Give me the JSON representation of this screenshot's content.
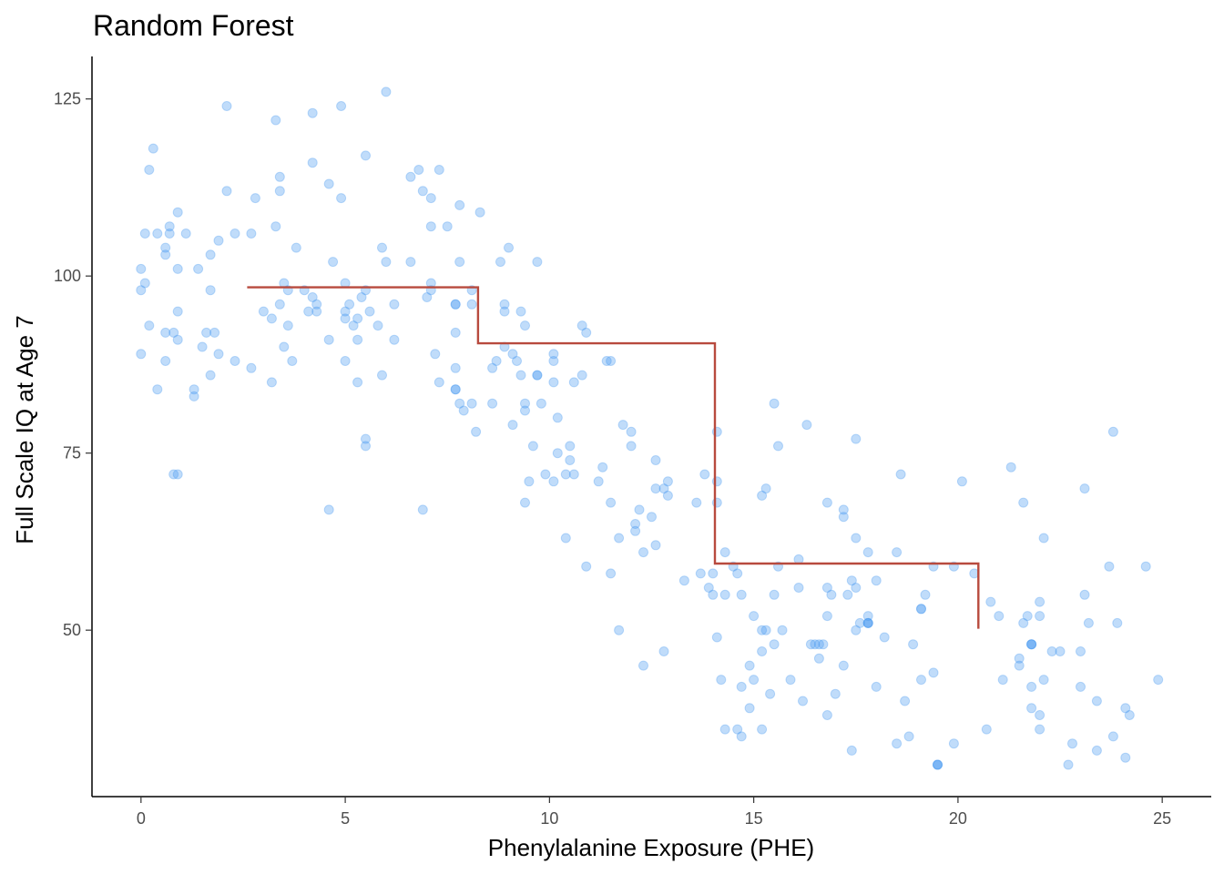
{
  "chart_data": {
    "type": "scatter",
    "title": "Random Forest",
    "xlabel": "Phenylalanine Exposure (PHE)",
    "ylabel": "Full Scale IQ at Age 7",
    "xlim": [
      -1.2,
      26.2
    ],
    "ylim": [
      26.5,
      131
    ],
    "xticks": [
      0,
      5,
      10,
      15,
      20,
      25
    ],
    "yticks": [
      50,
      75,
      100,
      125
    ],
    "grid": false,
    "legend": "none",
    "colors": {
      "points": "#4a9cf2",
      "step_line": "#b84a3e",
      "axis": "#000000"
    },
    "series": [
      {
        "type": "scatter",
        "points": [
          [
            0.0,
            101
          ],
          [
            0.0,
            98
          ],
          [
            0.0,
            89
          ],
          [
            0.1,
            106
          ],
          [
            0.1,
            99
          ],
          [
            0.2,
            115
          ],
          [
            0.2,
            93
          ],
          [
            0.3,
            118
          ],
          [
            0.4,
            106
          ],
          [
            0.4,
            84
          ],
          [
            0.6,
            104
          ],
          [
            0.6,
            103
          ],
          [
            0.6,
            92
          ],
          [
            0.6,
            88
          ],
          [
            0.7,
            107
          ],
          [
            0.7,
            106
          ],
          [
            0.8,
            92
          ],
          [
            0.8,
            72
          ],
          [
            0.9,
            109
          ],
          [
            0.9,
            101
          ],
          [
            0.9,
            95
          ],
          [
            0.9,
            91
          ],
          [
            0.9,
            72
          ],
          [
            1.1,
            106
          ],
          [
            1.3,
            84
          ],
          [
            1.3,
            83
          ],
          [
            1.4,
            101
          ],
          [
            1.5,
            90
          ],
          [
            1.6,
            92
          ],
          [
            1.7,
            103
          ],
          [
            1.7,
            98
          ],
          [
            1.7,
            86
          ],
          [
            1.8,
            92
          ],
          [
            1.9,
            105
          ],
          [
            1.9,
            89
          ],
          [
            2.1,
            124
          ],
          [
            2.1,
            112
          ],
          [
            2.3,
            106
          ],
          [
            2.3,
            88
          ],
          [
            2.7,
            106
          ],
          [
            2.7,
            87
          ],
          [
            2.8,
            111
          ],
          [
            3.0,
            95
          ],
          [
            3.2,
            94
          ],
          [
            3.2,
            85
          ],
          [
            3.3,
            122
          ],
          [
            3.3,
            107
          ],
          [
            3.4,
            114
          ],
          [
            3.4,
            112
          ],
          [
            3.4,
            96
          ],
          [
            3.5,
            99
          ],
          [
            3.5,
            90
          ],
          [
            3.6,
            98
          ],
          [
            3.6,
            93
          ],
          [
            3.7,
            88
          ],
          [
            3.8,
            104
          ],
          [
            4.0,
            98
          ],
          [
            4.2,
            123
          ],
          [
            4.2,
            116
          ],
          [
            4.2,
            97
          ],
          [
            4.3,
            96
          ],
          [
            4.3,
            95
          ],
          [
            4.1,
            95
          ],
          [
            4.6,
            113
          ],
          [
            4.6,
            91
          ],
          [
            4.6,
            67
          ],
          [
            4.7,
            102
          ],
          [
            4.9,
            124
          ],
          [
            4.9,
            111
          ],
          [
            5.0,
            99
          ],
          [
            5.0,
            95
          ],
          [
            5.0,
            94
          ],
          [
            5.0,
            88
          ],
          [
            5.1,
            96
          ],
          [
            5.2,
            93
          ],
          [
            5.3,
            94
          ],
          [
            5.3,
            91
          ],
          [
            5.3,
            85
          ],
          [
            5.4,
            97
          ],
          [
            5.5,
            117
          ],
          [
            5.5,
            98
          ],
          [
            5.5,
            77
          ],
          [
            5.5,
            76
          ],
          [
            5.6,
            95
          ],
          [
            5.8,
            93
          ],
          [
            5.9,
            104
          ],
          [
            5.9,
            86
          ],
          [
            6.0,
            126
          ],
          [
            6.0,
            102
          ],
          [
            6.2,
            96
          ],
          [
            6.2,
            91
          ],
          [
            6.6,
            114
          ],
          [
            6.6,
            102
          ],
          [
            6.8,
            115
          ],
          [
            6.9,
            112
          ],
          [
            6.9,
            67
          ],
          [
            7.0,
            97
          ],
          [
            7.1,
            111
          ],
          [
            7.1,
            107
          ],
          [
            7.1,
            99
          ],
          [
            7.1,
            98
          ],
          [
            7.2,
            89
          ],
          [
            7.3,
            115
          ],
          [
            7.3,
            85
          ],
          [
            7.5,
            107
          ],
          [
            7.7,
            96
          ],
          [
            7.7,
            92
          ],
          [
            7.7,
            87
          ],
          [
            7.7,
            84
          ],
          [
            7.7,
            84
          ],
          [
            7.7,
            96
          ],
          [
            7.8,
            110
          ],
          [
            7.8,
            102
          ],
          [
            7.8,
            82
          ],
          [
            7.9,
            81
          ],
          [
            8.1,
            98
          ],
          [
            8.1,
            96
          ],
          [
            8.1,
            82
          ],
          [
            8.2,
            78
          ],
          [
            8.3,
            109
          ],
          [
            8.6,
            87
          ],
          [
            8.6,
            82
          ],
          [
            8.7,
            88
          ],
          [
            8.8,
            102
          ],
          [
            8.9,
            96
          ],
          [
            8.9,
            95
          ],
          [
            8.9,
            90
          ],
          [
            9.0,
            104
          ],
          [
            9.1,
            89
          ],
          [
            9.1,
            79
          ],
          [
            9.2,
            88
          ],
          [
            9.3,
            95
          ],
          [
            9.3,
            86
          ],
          [
            9.4,
            93
          ],
          [
            9.4,
            82
          ],
          [
            9.4,
            81
          ],
          [
            9.4,
            68
          ],
          [
            9.5,
            71
          ],
          [
            9.6,
            76
          ],
          [
            9.7,
            102
          ],
          [
            9.7,
            86
          ],
          [
            9.7,
            86
          ],
          [
            9.8,
            82
          ],
          [
            9.9,
            72
          ],
          [
            10.1,
            89
          ],
          [
            10.1,
            88
          ],
          [
            10.1,
            85
          ],
          [
            10.1,
            71
          ],
          [
            10.2,
            80
          ],
          [
            10.2,
            75
          ],
          [
            10.4,
            72
          ],
          [
            10.4,
            63
          ],
          [
            10.5,
            76
          ],
          [
            10.5,
            74
          ],
          [
            10.6,
            85
          ],
          [
            10.6,
            72
          ],
          [
            10.8,
            93
          ],
          [
            10.8,
            86
          ],
          [
            10.9,
            92
          ],
          [
            10.9,
            59
          ],
          [
            11.2,
            71
          ],
          [
            11.3,
            73
          ],
          [
            11.4,
            88
          ],
          [
            11.5,
            88
          ],
          [
            11.5,
            68
          ],
          [
            11.5,
            58
          ],
          [
            11.7,
            63
          ],
          [
            11.7,
            50
          ],
          [
            11.8,
            79
          ],
          [
            12.0,
            78
          ],
          [
            12.0,
            76
          ],
          [
            12.1,
            65
          ],
          [
            12.1,
            64
          ],
          [
            12.2,
            67
          ],
          [
            12.3,
            61
          ],
          [
            12.3,
            45
          ],
          [
            12.5,
            66
          ],
          [
            12.6,
            74
          ],
          [
            12.6,
            70
          ],
          [
            12.6,
            62
          ],
          [
            12.8,
            70
          ],
          [
            12.8,
            47
          ],
          [
            12.9,
            71
          ],
          [
            12.9,
            69
          ],
          [
            13.3,
            57
          ],
          [
            13.6,
            68
          ],
          [
            13.8,
            72
          ],
          [
            13.7,
            58
          ],
          [
            14.0,
            58
          ],
          [
            13.9,
            56
          ],
          [
            14.0,
            55
          ],
          [
            14.1,
            78
          ],
          [
            14.1,
            71
          ],
          [
            14.1,
            68
          ],
          [
            14.1,
            49
          ],
          [
            14.2,
            43
          ],
          [
            14.3,
            61
          ],
          [
            14.3,
            55
          ],
          [
            14.3,
            36
          ],
          [
            14.5,
            59
          ],
          [
            14.6,
            58
          ],
          [
            14.6,
            36
          ],
          [
            14.7,
            55
          ],
          [
            14.7,
            42
          ],
          [
            14.7,
            35
          ],
          [
            14.9,
            45
          ],
          [
            14.9,
            39
          ],
          [
            15.0,
            52
          ],
          [
            15.0,
            43
          ],
          [
            15.2,
            69
          ],
          [
            15.2,
            50
          ],
          [
            15.2,
            47
          ],
          [
            15.2,
            36
          ],
          [
            15.3,
            70
          ],
          [
            15.3,
            50
          ],
          [
            15.4,
            41
          ],
          [
            15.5,
            82
          ],
          [
            15.5,
            55
          ],
          [
            15.5,
            48
          ],
          [
            15.6,
            76
          ],
          [
            15.6,
            59
          ],
          [
            15.7,
            50
          ],
          [
            15.9,
            43
          ],
          [
            16.1,
            60
          ],
          [
            16.1,
            56
          ],
          [
            16.2,
            40
          ],
          [
            16.3,
            79
          ],
          [
            16.4,
            48
          ],
          [
            16.5,
            48
          ],
          [
            16.6,
            48
          ],
          [
            16.7,
            48
          ],
          [
            16.6,
            46
          ],
          [
            16.8,
            68
          ],
          [
            16.8,
            56
          ],
          [
            16.8,
            52
          ],
          [
            16.8,
            38
          ],
          [
            16.9,
            55
          ],
          [
            17.0,
            41
          ],
          [
            17.2,
            67
          ],
          [
            17.2,
            66
          ],
          [
            17.2,
            45
          ],
          [
            17.3,
            55
          ],
          [
            17.4,
            57
          ],
          [
            17.4,
            33
          ],
          [
            17.5,
            77
          ],
          [
            17.5,
            63
          ],
          [
            17.5,
            56
          ],
          [
            17.5,
            50
          ],
          [
            17.6,
            51
          ],
          [
            17.8,
            61
          ],
          [
            17.8,
            52
          ],
          [
            17.8,
            51
          ],
          [
            17.8,
            51
          ],
          [
            17.8,
            51
          ],
          [
            18.0,
            57
          ],
          [
            18.0,
            42
          ],
          [
            18.2,
            49
          ],
          [
            18.5,
            61
          ],
          [
            18.5,
            34
          ],
          [
            18.6,
            72
          ],
          [
            18.7,
            40
          ],
          [
            18.8,
            35
          ],
          [
            18.9,
            48
          ],
          [
            19.1,
            53
          ],
          [
            19.1,
            43
          ],
          [
            19.1,
            53
          ],
          [
            19.2,
            55
          ],
          [
            19.4,
            59
          ],
          [
            19.4,
            44
          ],
          [
            19.5,
            31
          ],
          [
            19.5,
            31
          ],
          [
            19.5,
            31
          ],
          [
            19.9,
            59
          ],
          [
            19.9,
            34
          ],
          [
            20.1,
            71
          ],
          [
            20.4,
            58
          ],
          [
            20.7,
            36
          ],
          [
            20.8,
            54
          ],
          [
            21.0,
            52
          ],
          [
            21.1,
            43
          ],
          [
            21.3,
            73
          ],
          [
            21.5,
            46
          ],
          [
            21.5,
            45
          ],
          [
            21.6,
            68
          ],
          [
            21.6,
            51
          ],
          [
            21.7,
            52
          ],
          [
            21.8,
            48
          ],
          [
            21.8,
            48
          ],
          [
            21.8,
            42
          ],
          [
            21.8,
            39
          ],
          [
            21.8,
            48
          ],
          [
            22.0,
            54
          ],
          [
            22.0,
            52
          ],
          [
            22.0,
            38
          ],
          [
            22.0,
            36
          ],
          [
            22.1,
            63
          ],
          [
            22.1,
            43
          ],
          [
            22.3,
            47
          ],
          [
            22.5,
            47
          ],
          [
            22.7,
            31
          ],
          [
            22.8,
            34
          ],
          [
            23.0,
            47
          ],
          [
            23.0,
            42
          ],
          [
            23.1,
            70
          ],
          [
            23.1,
            55
          ],
          [
            23.2,
            51
          ],
          [
            23.4,
            40
          ],
          [
            23.4,
            33
          ],
          [
            23.7,
            59
          ],
          [
            23.8,
            78
          ],
          [
            23.8,
            35
          ],
          [
            23.9,
            51
          ],
          [
            24.1,
            39
          ],
          [
            24.1,
            32
          ],
          [
            24.2,
            38
          ],
          [
            24.6,
            59
          ],
          [
            24.9,
            43
          ]
        ]
      },
      {
        "type": "step",
        "points": [
          [
            2.6,
            98.4
          ],
          [
            8.25,
            98.4
          ],
          [
            8.25,
            90.5
          ],
          [
            14.05,
            90.5
          ],
          [
            14.05,
            59.4
          ],
          [
            20.5,
            59.4
          ],
          [
            20.5,
            50.2
          ]
        ]
      }
    ]
  }
}
